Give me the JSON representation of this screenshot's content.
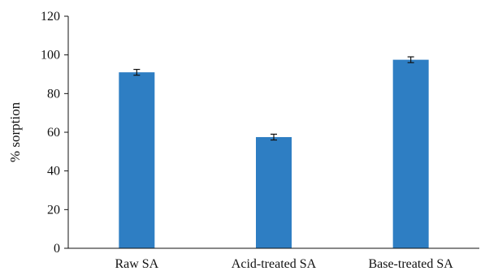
{
  "chart_data": {
    "type": "bar",
    "title": "",
    "xlabel": "",
    "ylabel": "% sorption",
    "categories": [
      "Raw SA",
      "Acid-treated SA",
      "Base-treated SA"
    ],
    "values": [
      91,
      57.5,
      97.5
    ],
    "errors": [
      1.5,
      1.5,
      1.5
    ],
    "ylim": [
      0,
      120
    ],
    "yticks": [
      "0",
      "20",
      "40",
      "60",
      "80",
      "100",
      "120"
    ],
    "grid": false,
    "legend": "none",
    "colors": {
      "bar": "#2e7ec3",
      "axis": "#111111",
      "error": "#111111"
    }
  }
}
